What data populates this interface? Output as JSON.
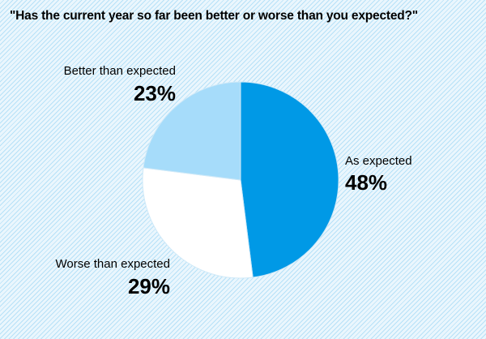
{
  "chart_data": {
    "type": "pie",
    "title": "\"Has the current year so far been better or worse than you expected?\"",
    "slices": [
      {
        "label": "As expected",
        "value": 48,
        "display": "48%",
        "color": "#0099e6"
      },
      {
        "label": "Worse than expected",
        "value": 29,
        "display": "29%",
        "color": "#ffffff"
      },
      {
        "label": "Better than expected",
        "value": 23,
        "display": "23%",
        "color": "#a6dcfa"
      }
    ],
    "start": "12 o'clock",
    "direction": "clockwise",
    "slice_border_color": "#cfe9f8"
  }
}
